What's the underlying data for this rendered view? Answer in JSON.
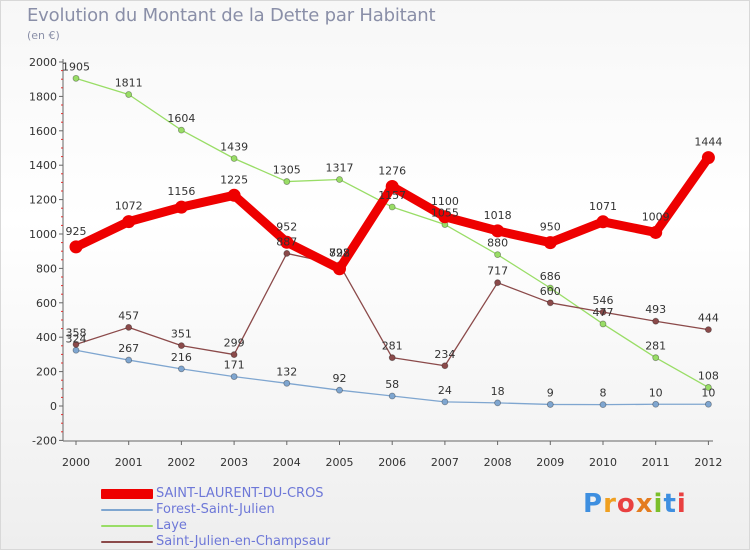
{
  "title": "Evolution du Montant de la Dette par Habitant",
  "unit_label": "(en €)",
  "logo_text": "Proxiti",
  "logo_letters": [
    "P",
    "r",
    "o",
    "x",
    "i",
    "t",
    "i"
  ],
  "chart_data": {
    "type": "line",
    "title": "Evolution du Montant de la Dette par Habitant",
    "ylabel": "(en €)",
    "xlabel": "",
    "x": [
      "2000",
      "2001",
      "2002",
      "2003",
      "2004",
      "2005",
      "2006",
      "2007",
      "2008",
      "2009",
      "2010",
      "2011",
      "2012"
    ],
    "ylim": [
      -200,
      2000
    ],
    "yticks": [
      "-200",
      "0",
      "200",
      "400",
      "600",
      "800",
      "1000",
      "1200",
      "1400",
      "1600",
      "1800",
      "2000"
    ],
    "grid": false,
    "legend_position": "bottom-left",
    "series": [
      {
        "name": "SAINT-LAURENT-DU-CROS",
        "color": "#ee0000",
        "values": [
          925,
          1072,
          1156,
          1225,
          952,
          798,
          1276,
          1100,
          1018,
          950,
          1071,
          1009,
          1444
        ],
        "labels": [
          "925",
          "1072",
          "1156",
          "1225",
          "952",
          "798",
          "1276",
          "1100",
          "1018",
          "950",
          "1071",
          "1009",
          "1444"
        ]
      },
      {
        "name": "Forest-Saint-Julien",
        "color": "#7fa6d0",
        "values": [
          324,
          267,
          216,
          171,
          132,
          92,
          58,
          24,
          18,
          9,
          8,
          10,
          10
        ],
        "labels": [
          "324",
          "267",
          "216",
          "171",
          "132",
          "92",
          "58",
          "24",
          "18",
          "9",
          "8",
          "10",
          "10"
        ]
      },
      {
        "name": "Laye",
        "color": "#99dd66",
        "values": [
          1905,
          1811,
          1604,
          1439,
          1305,
          1317,
          1157,
          1055,
          880,
          686,
          477,
          281,
          108
        ],
        "labels": [
          "1905",
          "1811",
          "1604",
          "1439",
          "1305",
          "1317",
          "1157",
          "1055",
          "880",
          "686",
          "477",
          "281",
          "108"
        ]
      },
      {
        "name": "Saint-Julien-en-Champsaur",
        "color": "#8b4a4a",
        "values": [
          358,
          457,
          351,
          299,
          887,
          822,
          281,
          234,
          717,
          600,
          546,
          493,
          444
        ],
        "labels": [
          "358",
          "457",
          "351",
          "299",
          "887",
          "822",
          "281",
          "234",
          "717",
          "600",
          "546",
          "493",
          "444"
        ]
      }
    ]
  }
}
